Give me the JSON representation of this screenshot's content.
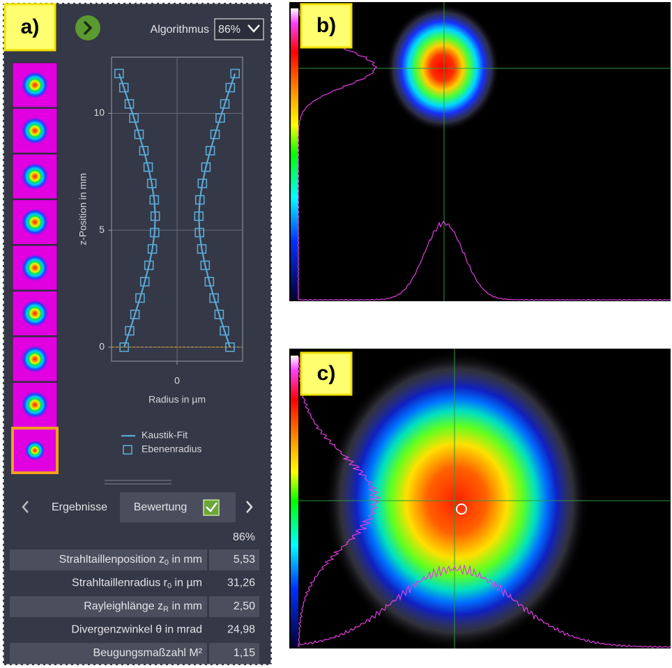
{
  "panels": {
    "a": "a)",
    "b": "b)",
    "c": "c)"
  },
  "toolbar": {
    "algorithm_label": "Algorithmus",
    "algorithm_value": "86%"
  },
  "chart_data": {
    "type": "scatter",
    "xlabel": "Radius in µm",
    "ylabel": "z-Position in mm",
    "xlim": [
      -94,
      94
    ],
    "xticks": [
      0
    ],
    "ylim": [
      -0.6,
      12.4
    ],
    "yticks": [
      0,
      5,
      10
    ],
    "grid": true,
    "legend": "bottom",
    "series": [
      {
        "name": "Kaustik-Fit",
        "color": "#5aa9d6",
        "x": [
          -75.9,
          -68.0,
          -60.4,
          -53.1,
          -46.3,
          -40.3,
          -35.4,
          -32.2,
          -31.3,
          -32.7,
          -36.3,
          -41.4,
          -47.6,
          -54.5,
          -61.9,
          -68.5,
          -76.3,
          -83.2,
          null,
          75.9,
          68.0,
          60.4,
          53.1,
          46.3,
          40.3,
          35.4,
          32.2,
          31.3,
          32.7,
          36.3,
          41.4,
          47.6,
          54.5,
          61.9,
          68.5,
          76.3,
          83.2
        ],
        "y": [
          0,
          0.7,
          1.4,
          2.1,
          2.8,
          3.5,
          4.2,
          4.9,
          5.6,
          6.3,
          7.0,
          7.7,
          8.4,
          9.1,
          9.8,
          10.4,
          11.1,
          11.7,
          null,
          0,
          0.7,
          1.4,
          2.1,
          2.8,
          3.5,
          4.2,
          4.9,
          5.6,
          6.3,
          7.0,
          7.7,
          8.4,
          9.1,
          9.8,
          10.4,
          11.1,
          11.7
        ]
      },
      {
        "name": "Ebenenradius",
        "color": "#5aa9d6",
        "marker": "square",
        "x": [
          -75.9,
          -68.0,
          -60.4,
          -53.1,
          -46.3,
          -40.3,
          -35.4,
          -32.2,
          -31.3,
          -32.7,
          -36.3,
          -41.4,
          -47.6,
          -54.5,
          -61.9,
          -68.5,
          -76.3,
          -83.2,
          75.9,
          68.0,
          60.4,
          53.1,
          46.3,
          40.3,
          35.4,
          32.2,
          31.3,
          32.7,
          36.3,
          41.4,
          47.6,
          54.5,
          61.9,
          68.5,
          76.3,
          83.2
        ],
        "y": [
          0,
          0.7,
          1.4,
          2.1,
          2.8,
          3.5,
          4.2,
          4.9,
          5.6,
          6.3,
          7.0,
          7.7,
          8.4,
          9.1,
          9.8,
          10.4,
          11.1,
          11.7,
          0,
          0.7,
          1.4,
          2.1,
          2.8,
          3.5,
          4.2,
          4.9,
          5.6,
          6.3,
          7.0,
          7.7,
          8.4,
          9.1,
          9.8,
          10.4,
          11.1,
          11.7
        ]
      }
    ]
  },
  "tabs": {
    "results": "Ergebnisse",
    "rating": "Bewertung"
  },
  "results": {
    "score": "86%",
    "rows": [
      {
        "label": [
          "Strahltaillenposition z",
          "0",
          " in mm"
        ],
        "value": "5,53"
      },
      {
        "label": [
          "Strahltaillenradius r",
          "0",
          " in µm"
        ],
        "value": "31,26"
      },
      {
        "label": [
          "Rayleighlänge z",
          "R",
          " in mm"
        ],
        "value": "2,50"
      },
      {
        "label": [
          "Divergenzwinkel θ in mrad"
        ],
        "value": "24,98"
      },
      {
        "label": [
          "Beugungsmaßzahl M²"
        ],
        "value": "1,15"
      }
    ]
  }
}
